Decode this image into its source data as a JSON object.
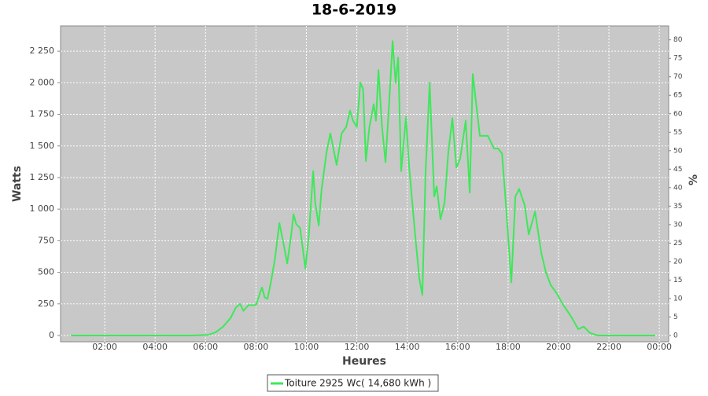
{
  "chart_data": {
    "type": "line",
    "title": "18-6-2019",
    "x_label": "Heures",
    "y_label": "Watts",
    "y2_label": "%",
    "x": [
      0.66,
      2,
      4,
      5.5,
      6.1,
      6.4,
      6.7,
      7.0,
      7.2,
      7.37,
      7.5,
      7.7,
      8.0,
      8.15,
      8.24,
      8.35,
      8.46,
      8.6,
      8.75,
      8.93,
      9.1,
      9.24,
      9.4,
      9.49,
      9.6,
      9.75,
      9.96,
      10.1,
      10.27,
      10.35,
      10.49,
      10.6,
      10.8,
      10.95,
      11.2,
      11.4,
      11.58,
      11.73,
      11.85,
      12.0,
      12.14,
      12.25,
      12.36,
      12.5,
      12.67,
      12.76,
      12.86,
      13.0,
      13.14,
      13.33,
      13.42,
      13.54,
      13.64,
      13.76,
      13.95,
      14.07,
      14.29,
      14.48,
      14.6,
      14.73,
      14.89,
      15.07,
      15.17,
      15.32,
      15.48,
      15.63,
      15.79,
      15.95,
      16.1,
      16.32,
      16.48,
      16.6,
      16.88,
      17.2,
      17.44,
      17.6,
      17.76,
      17.91,
      18.13,
      18.29,
      18.44,
      18.66,
      18.82,
      19.07,
      19.32,
      19.5,
      19.69,
      19.94,
      20.16,
      20.4,
      20.56,
      20.78,
      21.0,
      21.25,
      21.56,
      22.5,
      23.84
    ],
    "ylim": [
      -50,
      2450
    ],
    "yticks": [
      0,
      250,
      500,
      750,
      {
        "value": 1000,
        "label": "1 000"
      },
      {
        "value": 1250,
        "label": "1 250"
      },
      {
        "value": 1500,
        "label": "1 500"
      },
      {
        "value": 1750,
        "label": "1 750"
      },
      {
        "value": 2000,
        "label": "2 000"
      },
      {
        "value": 2250,
        "label": "2 250"
      }
    ],
    "y2lim": [
      -1.71,
      83.76
    ],
    "y2ticks": [
      0,
      5,
      10,
      15,
      20,
      25,
      30,
      35,
      40,
      45,
      50,
      55,
      60,
      65,
      70,
      75,
      80
    ],
    "xlim": [
      0.25,
      24.37
    ],
    "xticks": [
      {
        "value": 2,
        "label": "02:00"
      },
      {
        "value": 4,
        "label": "04:00"
      },
      {
        "value": 6,
        "label": "06:00"
      },
      {
        "value": 8,
        "label": "08:00"
      },
      {
        "value": 10,
        "label": "10:00"
      },
      {
        "value": 12,
        "label": "12:00"
      },
      {
        "value": 14,
        "label": "14:00"
      },
      {
        "value": 16,
        "label": "16:00"
      },
      {
        "value": 18,
        "label": "18:00"
      },
      {
        "value": 20,
        "label": "20:00"
      },
      {
        "value": 22,
        "label": "22:00"
      },
      {
        "value": 24,
        "label": "00:00"
      }
    ],
    "grid": true,
    "series": [
      {
        "name": "Toiture 2925 Wc( 14,680 kWh )",
        "color": "#3ee85a",
        "values": [
          0,
          0,
          0,
          0,
          5,
          25,
          70,
          140,
          220,
          250,
          195,
          240,
          240,
          330,
          380,
          300,
          290,
          430,
          600,
          890,
          720,
          570,
          800,
          960,
          880,
          850,
          530,
          800,
          1300,
          1050,
          870,
          1150,
          1450,
          1600,
          1350,
          1600,
          1650,
          1780,
          1700,
          1650,
          2000,
          1950,
          1380,
          1650,
          1830,
          1700,
          2100,
          1650,
          1370,
          2000,
          2330,
          2000,
          2200,
          1300,
          1730,
          1350,
          850,
          450,
          320,
          1300,
          2000,
          1100,
          1180,
          920,
          1050,
          1450,
          1720,
          1330,
          1400,
          1700,
          1130,
          2070,
          1580,
          1580,
          1480,
          1480,
          1440,
          1050,
          420,
          1100,
          1160,
          1030,
          800,
          980,
          650,
          500,
          400,
          330,
          250,
          180,
          130,
          50,
          70,
          20,
          0,
          0,
          0
        ]
      }
    ]
  }
}
